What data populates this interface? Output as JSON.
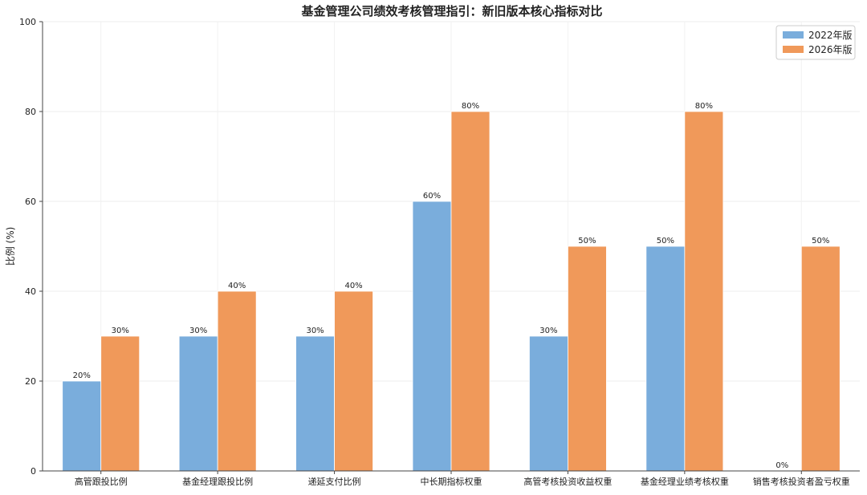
{
  "chart_data": {
    "type": "bar",
    "title": "基金管理公司绩效考核管理指引：新旧版本核心指标对比",
    "xlabel": "",
    "ylabel": "比例 (%)",
    "ylim": [
      0,
      100
    ],
    "yticks": [
      "0",
      "20",
      "40",
      "60",
      "80",
      "100"
    ],
    "grid": true,
    "legend_position": "top-right",
    "categories": [
      "高管跟投比例",
      "基金经理跟投比例",
      "递延支付比例",
      "中长期指标权重",
      "高管考核投资收益权重",
      "基金经理业绩考核权重",
      "销售考核投资者盈亏权重"
    ],
    "series": [
      {
        "name": "2022年版",
        "color": "#7aaddc",
        "values": [
          20,
          30,
          30,
          60,
          30,
          50,
          0
        ],
        "labels": [
          "20%",
          "30%",
          "30%",
          "60%",
          "30%",
          "50%",
          "0%"
        ]
      },
      {
        "name": "2026年版",
        "color": "#f0995a",
        "values": [
          30,
          40,
          40,
          80,
          50,
          80,
          50
        ],
        "labels": [
          "30%",
          "40%",
          "40%",
          "80%",
          "50%",
          "80%",
          "50%"
        ]
      }
    ]
  }
}
